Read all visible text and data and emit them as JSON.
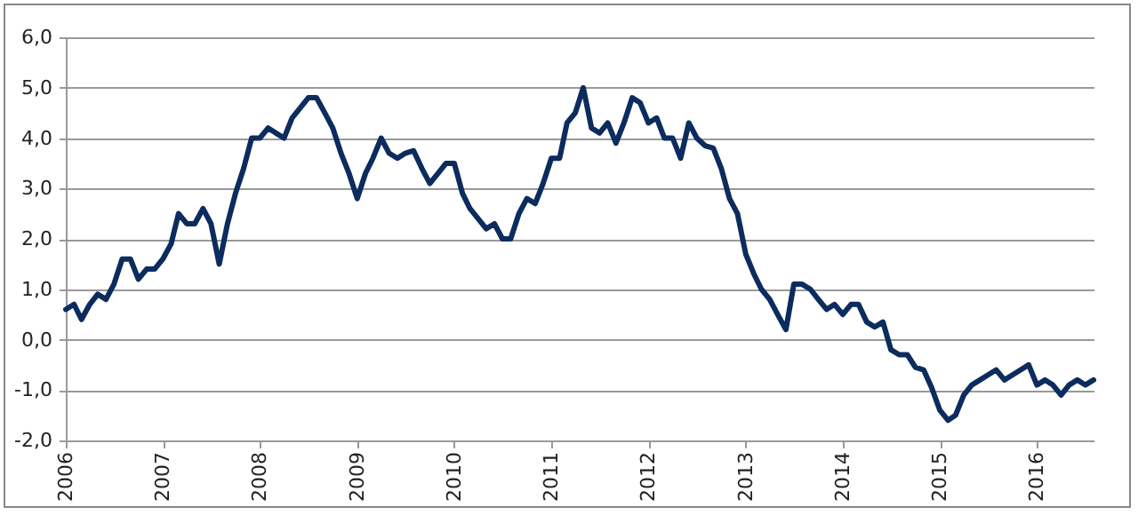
{
  "chart_data": {
    "type": "line",
    "x": [
      "2006-01",
      "2006-02",
      "2006-03",
      "2006-04",
      "2006-05",
      "2006-06",
      "2006-07",
      "2006-08",
      "2006-09",
      "2006-10",
      "2006-11",
      "2006-12",
      "2007-01",
      "2007-02",
      "2007-03",
      "2007-04",
      "2007-05",
      "2007-06",
      "2007-07",
      "2007-08",
      "2007-09",
      "2007-10",
      "2007-11",
      "2007-12",
      "2008-01",
      "2008-02",
      "2008-03",
      "2008-04",
      "2008-05",
      "2008-06",
      "2008-07",
      "2008-08",
      "2008-09",
      "2008-10",
      "2008-11",
      "2008-12",
      "2009-01",
      "2009-02",
      "2009-03",
      "2009-04",
      "2009-05",
      "2009-06",
      "2009-07",
      "2009-08",
      "2009-09",
      "2009-10",
      "2009-11",
      "2009-12",
      "2010-01",
      "2010-02",
      "2010-03",
      "2010-04",
      "2010-05",
      "2010-06",
      "2010-07",
      "2010-08",
      "2010-09",
      "2010-10",
      "2010-11",
      "2010-12",
      "2011-01",
      "2011-02",
      "2011-03",
      "2011-04",
      "2011-05",
      "2011-06",
      "2011-07",
      "2011-08",
      "2011-09",
      "2011-10",
      "2011-11",
      "2011-12",
      "2012-01",
      "2012-02",
      "2012-03",
      "2012-04",
      "2012-05",
      "2012-06",
      "2012-07",
      "2012-08",
      "2012-09",
      "2012-10",
      "2012-11",
      "2012-12",
      "2013-01",
      "2013-02",
      "2013-03",
      "2013-04",
      "2013-05",
      "2013-06",
      "2013-07",
      "2013-08",
      "2013-09",
      "2013-10",
      "2013-11",
      "2013-12",
      "2014-01",
      "2014-02",
      "2014-03",
      "2014-04",
      "2014-05",
      "2014-06",
      "2014-07",
      "2014-08",
      "2014-09",
      "2014-10",
      "2014-11",
      "2014-12",
      "2015-01",
      "2015-02",
      "2015-03",
      "2015-04",
      "2015-05",
      "2015-06",
      "2015-07",
      "2015-08",
      "2015-09",
      "2015-10",
      "2015-11",
      "2015-12",
      "2016-01",
      "2016-02",
      "2016-03",
      "2016-04",
      "2016-05",
      "2016-06",
      "2016-07",
      "2016-08"
    ],
    "series": [
      {
        "color": "#0c2c5e",
        "values": [
          0.6,
          0.7,
          0.4,
          0.7,
          0.9,
          0.8,
          1.1,
          1.6,
          1.6,
          1.2,
          1.4,
          1.4,
          1.6,
          1.9,
          2.5,
          2.3,
          2.3,
          2.6,
          2.3,
          1.5,
          2.3,
          2.9,
          3.4,
          4.0,
          4.0,
          4.2,
          4.1,
          4.0,
          4.4,
          4.6,
          4.8,
          4.8,
          4.5,
          4.2,
          3.7,
          3.3,
          2.8,
          3.3,
          3.6,
          4.0,
          3.7,
          3.6,
          3.7,
          3.75,
          3.4,
          3.1,
          3.3,
          3.5,
          3.5,
          2.9,
          2.6,
          2.4,
          2.2,
          2.3,
          2.0,
          2.0,
          2.5,
          2.8,
          2.7,
          3.1,
          3.6,
          3.6,
          4.3,
          4.5,
          5.0,
          4.2,
          4.1,
          4.3,
          3.9,
          4.3,
          4.8,
          4.7,
          4.3,
          4.4,
          4.0,
          4.0,
          3.6,
          4.3,
          4.0,
          3.85,
          3.8,
          3.4,
          2.8,
          2.5,
          1.7,
          1.3,
          1.0,
          0.8,
          0.5,
          0.2,
          1.1,
          1.1,
          1.0,
          0.8,
          0.6,
          0.7,
          0.5,
          0.7,
          0.7,
          0.35,
          0.25,
          0.35,
          -0.2,
          -0.3,
          -0.3,
          -0.55,
          -0.6,
          -0.95,
          -1.4,
          -1.6,
          -1.5,
          -1.1,
          -0.9,
          -0.8,
          -0.7,
          -0.6,
          -0.8,
          -0.7,
          -0.6,
          -0.5,
          -0.9,
          -0.8,
          -0.9,
          -1.1,
          -0.9,
          -0.8,
          -0.9,
          -0.8
        ]
      }
    ],
    "xlim": [
      "2006-01",
      "2016-08"
    ],
    "xticks": [
      {
        "value": "2006-01",
        "label": "2006"
      },
      {
        "value": "2007-01",
        "label": "2007"
      },
      {
        "value": "2008-01",
        "label": "2008"
      },
      {
        "value": "2009-01",
        "label": "2009"
      },
      {
        "value": "2010-01",
        "label": "2010"
      },
      {
        "value": "2011-01",
        "label": "2011"
      },
      {
        "value": "2012-01",
        "label": "2012"
      },
      {
        "value": "2013-01",
        "label": "2013"
      },
      {
        "value": "2014-01",
        "label": "2014"
      },
      {
        "value": "2015-01",
        "label": "2015"
      },
      {
        "value": "2016-01",
        "label": "2016"
      }
    ],
    "ylim": [
      -2,
      6
    ],
    "yticks": [
      {
        "value": -2,
        "label": "-2,0"
      },
      {
        "value": -1,
        "label": "-1,0"
      },
      {
        "value": 0,
        "label": "0,0"
      },
      {
        "value": 1,
        "label": "1,0"
      },
      {
        "value": 2,
        "label": "2,0"
      },
      {
        "value": 3,
        "label": "3,0"
      },
      {
        "value": 4,
        "label": "4,0"
      },
      {
        "value": 5,
        "label": "5,0"
      },
      {
        "value": 6,
        "label": "6,0"
      }
    ],
    "grid": "y",
    "marker": "none",
    "line_style": "solid"
  }
}
